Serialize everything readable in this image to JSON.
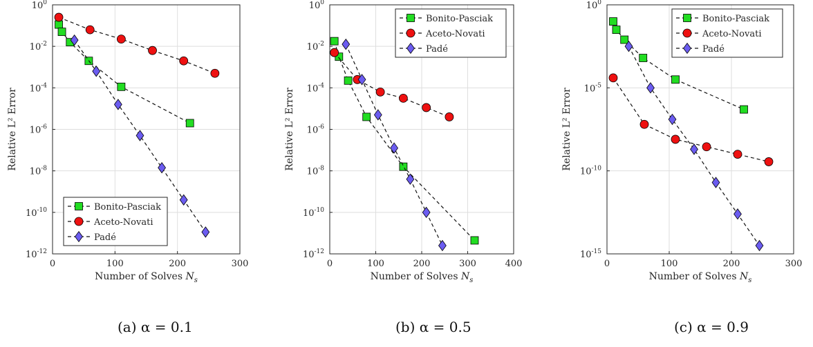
{
  "chart_data": [
    {
      "type": "line",
      "caption": "(a) α = 0.1",
      "xlabel": "Number of Solves N_s",
      "ylabel": "Relative L² Error",
      "xlim": [
        0,
        300
      ],
      "xticks": [
        0,
        100,
        200,
        300
      ],
      "ylog": true,
      "ylim_exp": [
        -12,
        0
      ],
      "yticks_exp": [
        -12,
        -10,
        -8,
        -6,
        -4,
        -2,
        0
      ],
      "grid": true,
      "legend_position": "bottom-center",
      "series": [
        {
          "name": "Bonito-Pasciak",
          "color": "#22dd22",
          "marker": "square",
          "x": [
            10,
            15,
            28,
            58,
            110,
            220
          ],
          "log10y": [
            -0.95,
            -1.3,
            -1.8,
            -2.7,
            -3.95,
            -5.7
          ]
        },
        {
          "name": "Aceto-Novati",
          "color": "#ee1111",
          "marker": "circle",
          "x": [
            10,
            60,
            110,
            160,
            210,
            260
          ],
          "log10y": [
            -0.6,
            -1.2,
            -1.65,
            -2.2,
            -2.7,
            -3.3
          ]
        },
        {
          "name": "Padé",
          "color": "#6b5cf0",
          "marker": "diamond",
          "x": [
            35,
            70,
            105,
            140,
            175,
            210,
            245
          ],
          "log10y": [
            -1.7,
            -3.2,
            -4.8,
            -6.3,
            -7.85,
            -9.4,
            -10.95
          ]
        }
      ]
    },
    {
      "type": "line",
      "caption": "(b) α = 0.5",
      "xlabel": "Number of Solves N_s",
      "ylabel": "Relative L² Error",
      "xlim": [
        0,
        400
      ],
      "xticks": [
        0,
        100,
        200,
        300,
        400
      ],
      "ylog": true,
      "ylim_exp": [
        -12,
        0
      ],
      "yticks_exp": [
        -12,
        -10,
        -8,
        -6,
        -4,
        -2,
        0
      ],
      "grid": true,
      "legend_position": "top-right",
      "series": [
        {
          "name": "Bonito-Pasciak",
          "color": "#22dd22",
          "marker": "square",
          "x": [
            10,
            20,
            40,
            80,
            160,
            315
          ],
          "log10y": [
            -1.75,
            -2.5,
            -3.65,
            -5.4,
            -7.8,
            -11.35
          ]
        },
        {
          "name": "Aceto-Novati",
          "color": "#ee1111",
          "marker": "circle",
          "x": [
            10,
            60,
            110,
            160,
            210,
            260
          ],
          "log10y": [
            -2.3,
            -3.6,
            -4.2,
            -4.5,
            -4.95,
            -5.4
          ]
        },
        {
          "name": "Padé",
          "color": "#6b5cf0",
          "marker": "diamond",
          "x": [
            35,
            70,
            105,
            140,
            175,
            210,
            245
          ],
          "log10y": [
            -1.9,
            -3.6,
            -5.3,
            -6.9,
            -8.4,
            -10.0,
            -11.6
          ]
        }
      ]
    },
    {
      "type": "line",
      "caption": "(c) α = 0.9",
      "xlabel": "Number of Solves N_s",
      "ylabel": "Relative L² Error",
      "xlim": [
        0,
        300
      ],
      "xticks": [
        0,
        100,
        200,
        300
      ],
      "ylog": true,
      "ylim_exp": [
        -15,
        0
      ],
      "yticks_exp": [
        -15,
        -10,
        -5,
        0
      ],
      "grid": true,
      "legend_position": "top-right",
      "series": [
        {
          "name": "Bonito-Pasciak",
          "color": "#22dd22",
          "marker": "square",
          "x": [
            10,
            15,
            28,
            58,
            110,
            220
          ],
          "log10y": [
            -1.0,
            -1.5,
            -2.1,
            -3.2,
            -4.5,
            -6.3
          ]
        },
        {
          "name": "Aceto-Novati",
          "color": "#ee1111",
          "marker": "circle",
          "x": [
            10,
            60,
            110,
            160,
            210,
            260
          ],
          "log10y": [
            -4.4,
            -7.2,
            -8.1,
            -8.55,
            -9.0,
            -9.45
          ]
        },
        {
          "name": "Padé",
          "color": "#6b5cf0",
          "marker": "diamond",
          "x": [
            35,
            70,
            105,
            140,
            175,
            210,
            245
          ],
          "log10y": [
            -2.5,
            -5.0,
            -6.9,
            -8.7,
            -10.7,
            -12.6,
            -14.5
          ]
        }
      ]
    }
  ]
}
